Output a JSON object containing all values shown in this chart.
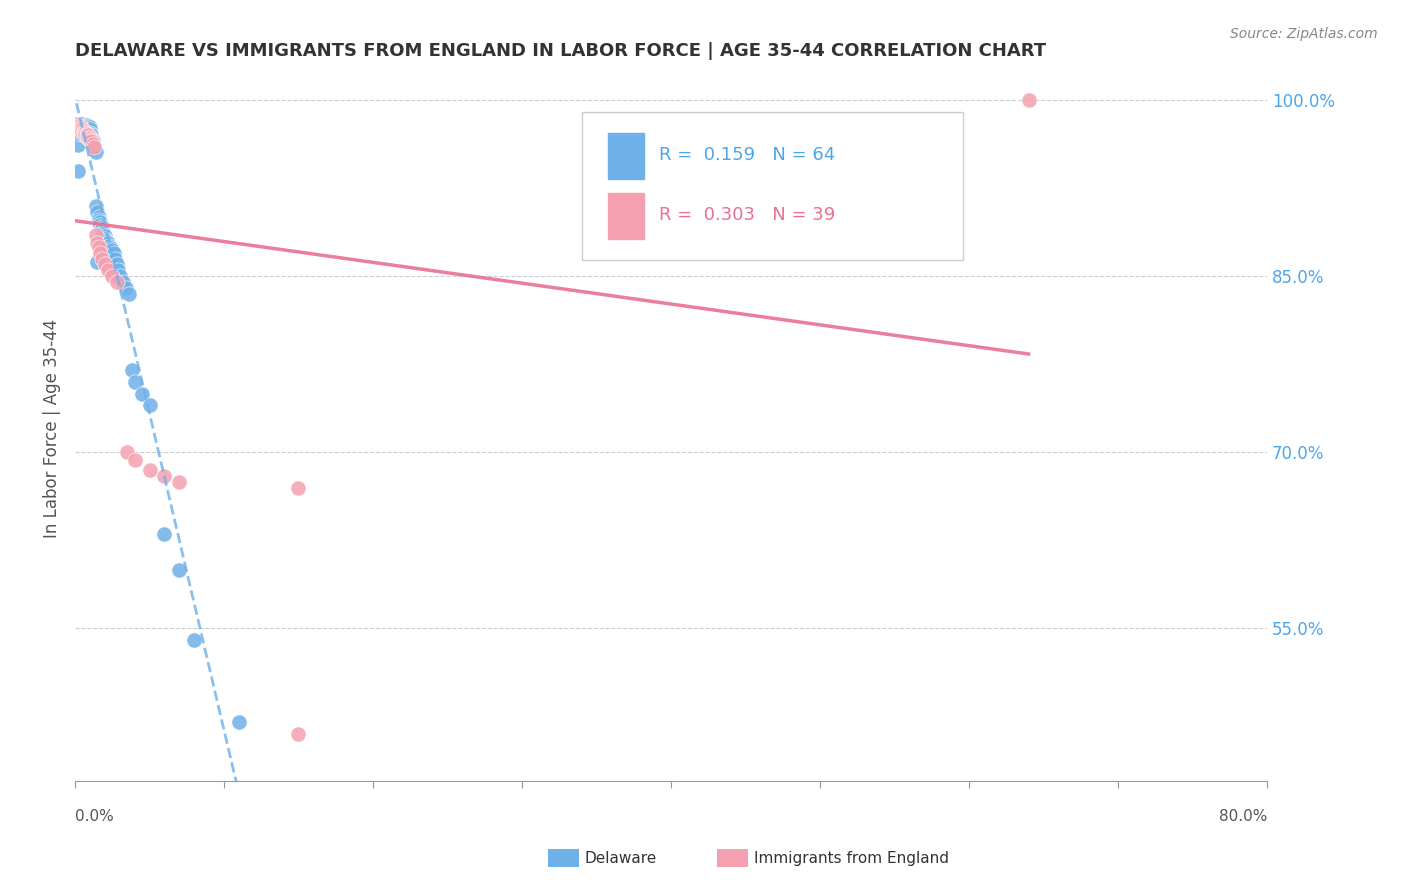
{
  "title": "DELAWARE VS IMMIGRANTS FROM ENGLAND IN LABOR FORCE | AGE 35-44 CORRELATION CHART",
  "source": "Source: ZipAtlas.com",
  "ylabel": "In Labor Force | Age 35-44",
  "xlim": [
    0.0,
    0.8
  ],
  "ylim": [
    0.42,
    1.02
  ],
  "yticks": [
    0.55,
    0.7,
    0.85,
    1.0
  ],
  "ytick_labels": [
    "55.0%",
    "70.0%",
    "85.0%",
    "100.0%"
  ],
  "delaware_color": "#6eb0e8",
  "england_color": "#f4a0b0",
  "trendline1_color": "#6eb0e8",
  "trendline2_color": "#e87090",
  "background_color": "#ffffff",
  "de_x": [
    0.001,
    0.002,
    0.002,
    0.003,
    0.003,
    0.003,
    0.004,
    0.004,
    0.005,
    0.005,
    0.006,
    0.006,
    0.006,
    0.007,
    0.007,
    0.008,
    0.008,
    0.008,
    0.009,
    0.009,
    0.01,
    0.01,
    0.01,
    0.011,
    0.011,
    0.012,
    0.012,
    0.013,
    0.013,
    0.014,
    0.014,
    0.015,
    0.015,
    0.016,
    0.016,
    0.017,
    0.017,
    0.018,
    0.018,
    0.019,
    0.019,
    0.02,
    0.02,
    0.021,
    0.022,
    0.023,
    0.024,
    0.025,
    0.026,
    0.027,
    0.028,
    0.029,
    0.03,
    0.032,
    0.034,
    0.036,
    0.038,
    0.04,
    0.045,
    0.05,
    0.06,
    0.07,
    0.08,
    0.11
  ],
  "de_y": [
    0.978,
    0.962,
    0.94,
    0.98,
    0.978,
    0.976,
    0.975,
    0.971,
    0.98,
    0.975,
    0.978,
    0.975,
    0.973,
    0.978,
    0.972,
    0.979,
    0.977,
    0.975,
    0.978,
    0.976,
    0.977,
    0.975,
    0.972,
    0.97,
    0.968,
    0.965,
    0.962,
    0.96,
    0.958,
    0.956,
    0.91,
    0.905,
    0.862,
    0.9,
    0.898,
    0.896,
    0.894,
    0.892,
    0.89,
    0.888,
    0.886,
    0.884,
    0.882,
    0.88,
    0.878,
    0.876,
    0.874,
    0.872,
    0.87,
    0.865,
    0.86,
    0.855,
    0.85,
    0.845,
    0.84,
    0.835,
    0.77,
    0.76,
    0.75,
    0.74,
    0.63,
    0.6,
    0.54,
    0.47
  ],
  "en_x": [
    0.001,
    0.002,
    0.002,
    0.003,
    0.003,
    0.004,
    0.004,
    0.005,
    0.005,
    0.006,
    0.006,
    0.007,
    0.007,
    0.008,
    0.008,
    0.009,
    0.009,
    0.01,
    0.01,
    0.011,
    0.012,
    0.013,
    0.014,
    0.015,
    0.016,
    0.017,
    0.018,
    0.02,
    0.022,
    0.025,
    0.028,
    0.035,
    0.04,
    0.05,
    0.06,
    0.07,
    0.15,
    0.15,
    0.64
  ],
  "en_y": [
    0.98,
    0.979,
    0.977,
    0.978,
    0.976,
    0.977,
    0.975,
    0.975,
    0.973,
    0.974,
    0.972,
    0.972,
    0.97,
    0.971,
    0.969,
    0.97,
    0.968,
    0.968,
    0.966,
    0.965,
    0.963,
    0.96,
    0.885,
    0.878,
    0.875,
    0.87,
    0.865,
    0.86,
    0.855,
    0.85,
    0.845,
    0.7,
    0.693,
    0.685,
    0.68,
    0.675,
    0.67,
    0.46,
    1.0
  ]
}
